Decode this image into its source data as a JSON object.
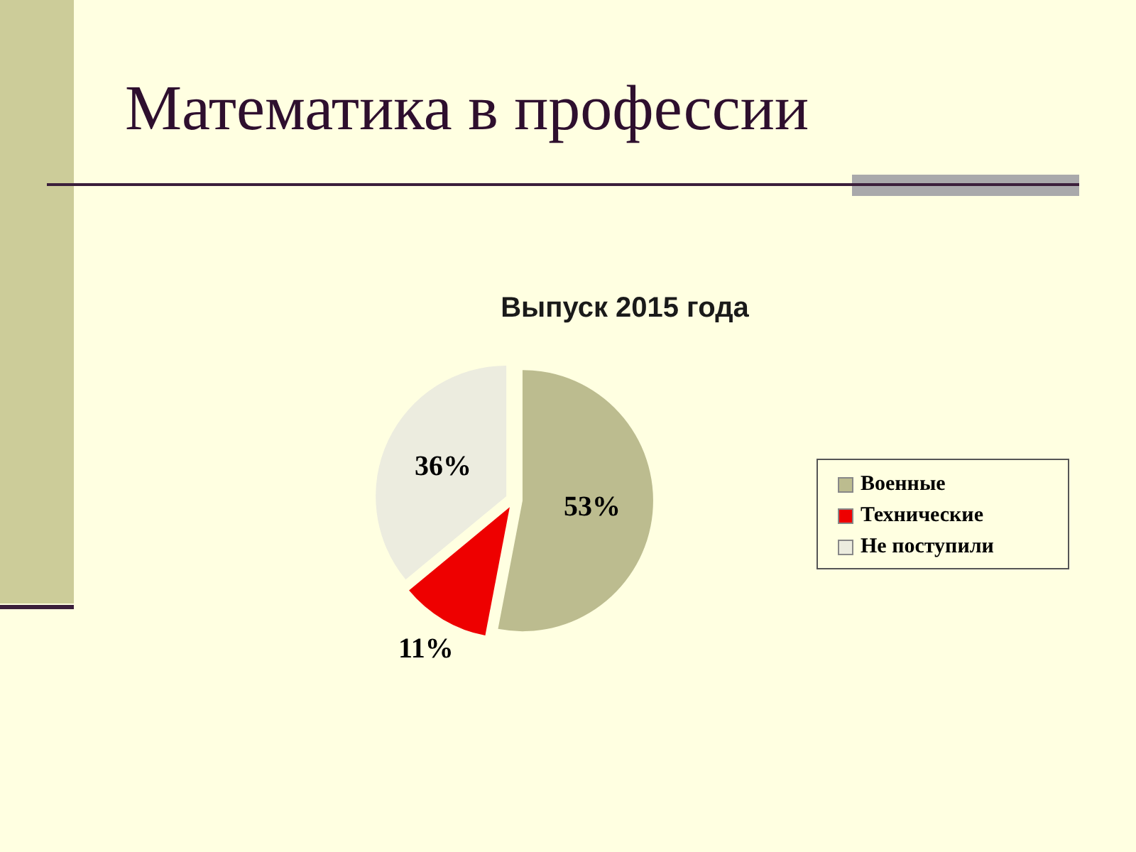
{
  "chart_data": {
    "type": "pie",
    "title": "Математика в профессии",
    "subtitle": "Выпуск 2015 года",
    "categories": [
      "Военные",
      "Технические",
      "Не поступили"
    ],
    "values": [
      53,
      11,
      36
    ],
    "colors": [
      "#bcbc8f",
      "#ee0000",
      "#ececdf"
    ],
    "value_labels": [
      "53%",
      "11%",
      "36%"
    ],
    "legend": "right"
  }
}
